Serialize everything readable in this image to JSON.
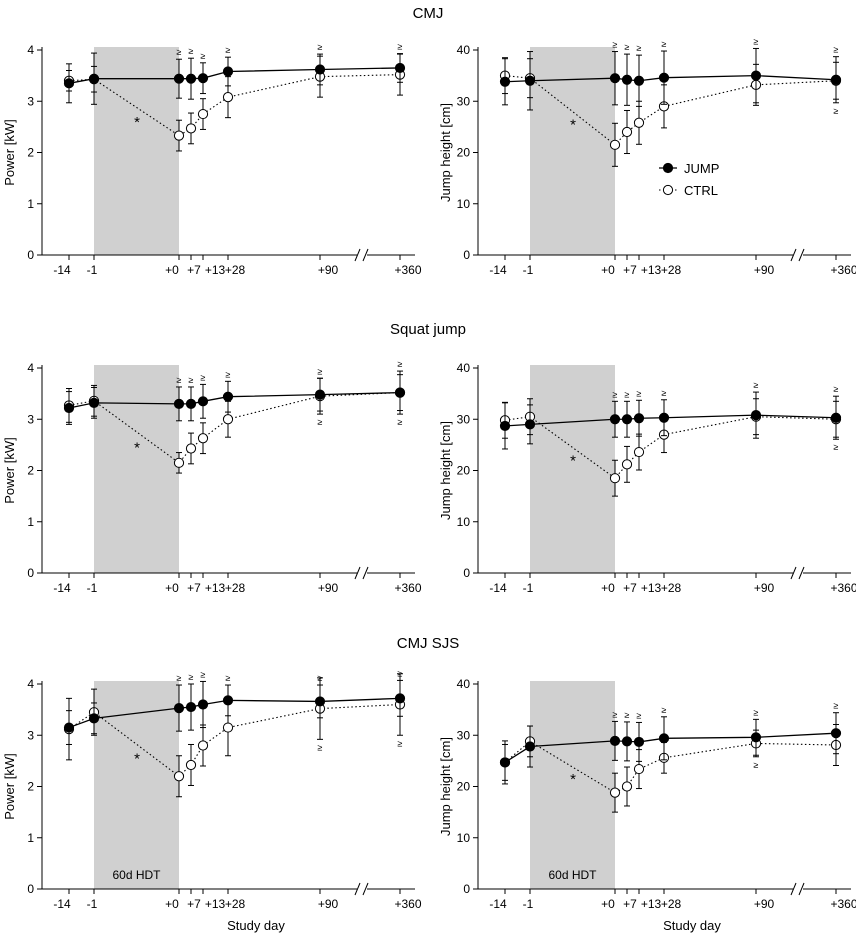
{
  "figure": {
    "row_titles": [
      "CMJ",
      "Squat jump",
      "CMJ SJS"
    ],
    "xlabel": "Study day",
    "shade_label": "60d HDT",
    "legend": [
      "JUMP",
      "CTRL"
    ],
    "colors": {
      "axis": "#000000",
      "shade": "#d0d0d0",
      "jump_fill": "#000000",
      "ctrl_fill": "#ffffff"
    },
    "x_ticks": [
      "-14",
      "-1",
      "+0",
      "+7",
      "+13",
      "+28",
      "+90",
      "+360"
    ],
    "sig_symbol": "≥",
    "star_symbol": "*"
  },
  "chart_data": [
    {
      "id": "cmj-power",
      "type": "line",
      "title": "CMJ",
      "ylabel": "Power [kW]",
      "ylim": [
        0,
        4
      ],
      "yticks": [
        "0",
        "1",
        "2",
        "3",
        "4"
      ],
      "x_days": [
        -14,
        -1,
        7,
        10,
        13,
        28,
        90,
        360
      ],
      "series": [
        {
          "name": "JUMP",
          "values": [
            3.35,
            3.44,
            3.44,
            3.44,
            3.45,
            3.58,
            3.62,
            3.65
          ],
          "err": [
            0.38,
            0.5,
            0.38,
            0.4,
            0.3,
            0.28,
            0.3,
            0.28
          ]
        },
        {
          "name": "CTRL",
          "values": [
            3.4,
            3.43,
            2.33,
            2.47,
            2.75,
            3.08,
            3.48,
            3.52
          ],
          "err": [
            0.2,
            0.25,
            0.3,
            0.3,
            0.3,
            0.4,
            0.4,
            0.4
          ]
        }
      ],
      "sig": [
        7,
        10,
        13,
        28,
        90,
        360
      ],
      "star": {
        "day": -4,
        "value": 2.6
      },
      "show_legend": false,
      "show_xlabel": false,
      "show_shade_label": false
    },
    {
      "id": "cmj-height",
      "type": "line",
      "title": "CMJ",
      "ylabel": "Jump height [cm]",
      "ylim": [
        0,
        40
      ],
      "yticks": [
        "0",
        "10",
        "20",
        "30",
        "40"
      ],
      "x_days": [
        -14,
        -1,
        7,
        10,
        13,
        28,
        90,
        360
      ],
      "series": [
        {
          "name": "JUMP",
          "values": [
            33.8,
            34.0,
            34.5,
            34.2,
            34.0,
            34.6,
            35.0,
            34.2
          ],
          "err": [
            4.5,
            5.7,
            5.2,
            5.0,
            5.0,
            5.2,
            5.3,
            4.5
          ]
        },
        {
          "name": "CTRL",
          "values": [
            35.0,
            34.5,
            21.5,
            24.0,
            25.8,
            29.0,
            33.2,
            34.0
          ],
          "err": [
            3.5,
            3.8,
            4.2,
            4.2,
            4.2,
            4.2,
            4.0,
            3.6
          ]
        }
      ],
      "sig": [
        7,
        10,
        13,
        28,
        90,
        360
      ],
      "sig_low": [
        360
      ],
      "star": {
        "day": -4,
        "value": 25.5
      },
      "show_legend": true,
      "show_xlabel": false,
      "show_shade_label": false
    },
    {
      "id": "sj-power",
      "type": "line",
      "title": "Squat jump",
      "ylabel": "Power [kW]",
      "ylim": [
        0,
        4
      ],
      "yticks": [
        "0",
        "1",
        "2",
        "3",
        "4"
      ],
      "x_days": [
        -14,
        -1,
        7,
        10,
        13,
        28,
        90,
        360
      ],
      "series": [
        {
          "name": "JUMP",
          "values": [
            3.22,
            3.32,
            3.3,
            3.3,
            3.35,
            3.44,
            3.48,
            3.52
          ],
          "err": [
            0.32,
            0.3,
            0.33,
            0.33,
            0.33,
            0.3,
            0.32,
            0.42
          ]
        },
        {
          "name": "CTRL",
          "values": [
            3.27,
            3.36,
            2.15,
            2.43,
            2.63,
            3.0,
            3.45,
            3.52
          ],
          "err": [
            0.33,
            0.3,
            0.2,
            0.3,
            0.3,
            0.35,
            0.35,
            0.35
          ]
        }
      ],
      "sig": [
        7,
        10,
        13,
        28,
        90,
        360
      ],
      "sig_low": [
        90,
        360
      ],
      "star": {
        "day": -4,
        "value": 2.45
      },
      "show_legend": false,
      "show_xlabel": false,
      "show_shade_label": false
    },
    {
      "id": "sj-height",
      "type": "line",
      "title": "Squat jump",
      "ylabel": "Jump height [cm]",
      "ylim": [
        0,
        40
      ],
      "yticks": [
        "0",
        "10",
        "20",
        "30",
        "40"
      ],
      "x_days": [
        -14,
        -1,
        7,
        10,
        13,
        28,
        90,
        360
      ],
      "series": [
        {
          "name": "JUMP",
          "values": [
            28.7,
            29.0,
            30.0,
            30.0,
            30.2,
            30.3,
            30.8,
            30.3
          ],
          "err": [
            4.5,
            3.8,
            3.5,
            3.5,
            3.5,
            3.5,
            4.5,
            4.2
          ]
        },
        {
          "name": "CTRL",
          "values": [
            29.8,
            30.5,
            18.5,
            21.2,
            23.6,
            27.0,
            30.5,
            30.0
          ],
          "err": [
            3.5,
            3.5,
            3.5,
            3.5,
            3.5,
            3.5,
            3.5,
            3.5
          ]
        }
      ],
      "sig": [
        7,
        10,
        13,
        28,
        90,
        360
      ],
      "sig_low": [
        360
      ],
      "star": {
        "day": -4,
        "value": 22.0
      },
      "show_legend": false,
      "show_xlabel": false,
      "show_shade_label": false
    },
    {
      "id": "sjs-power",
      "type": "line",
      "title": "CMJ SJS",
      "ylabel": "Power [kW]",
      "ylim": [
        0,
        4
      ],
      "yticks": [
        "0",
        "1",
        "2",
        "3",
        "4"
      ],
      "x_days": [
        -14,
        -1,
        7,
        10,
        13,
        28,
        90,
        360
      ],
      "series": [
        {
          "name": "JUMP",
          "values": [
            3.15,
            3.33,
            3.53,
            3.55,
            3.6,
            3.68,
            3.66,
            3.72
          ],
          "err": [
            0.33,
            0.3,
            0.45,
            0.45,
            0.45,
            0.3,
            0.32,
            0.35
          ]
        },
        {
          "name": "CTRL",
          "values": [
            3.12,
            3.45,
            2.2,
            2.42,
            2.8,
            3.15,
            3.52,
            3.6
          ],
          "err": [
            0.6,
            0.45,
            0.4,
            0.4,
            0.4,
            0.55,
            0.6,
            0.6
          ]
        }
      ],
      "sig": [
        7,
        10,
        13,
        28,
        90,
        360
      ],
      "sig_low": [
        90,
        360
      ],
      "star": {
        "day": -4,
        "value": 2.55
      },
      "show_legend": false,
      "show_xlabel": true,
      "show_shade_label": true
    },
    {
      "id": "sjs-height",
      "type": "line",
      "title": "CMJ SJS",
      "ylabel": "Jump height [cm]",
      "ylim": [
        0,
        40
      ],
      "yticks": [
        "0",
        "10",
        "20",
        "30",
        "40"
      ],
      "x_days": [
        -14,
        -1,
        7,
        10,
        13,
        28,
        90,
        360
      ],
      "series": [
        {
          "name": "JUMP",
          "values": [
            24.7,
            27.8,
            28.9,
            28.8,
            28.7,
            29.4,
            29.6,
            30.4
          ],
          "err": [
            4.2,
            4.0,
            3.8,
            3.8,
            3.8,
            4.2,
            3.5,
            4.0
          ]
        },
        {
          "name": "CTRL",
          "values": [
            24.7,
            28.8,
            18.8,
            20.0,
            23.4,
            25.6,
            28.4,
            28.1
          ],
          "err": [
            3.5,
            3.0,
            3.8,
            3.8,
            3.8,
            3.0,
            2.6,
            4.0
          ]
        }
      ],
      "sig": [
        7,
        10,
        13,
        28,
        90,
        360
      ],
      "sig_low": [
        90
      ],
      "star": {
        "day": -4,
        "value": 21.5
      },
      "show_legend": false,
      "show_xlabel": true,
      "show_shade_label": true
    }
  ]
}
